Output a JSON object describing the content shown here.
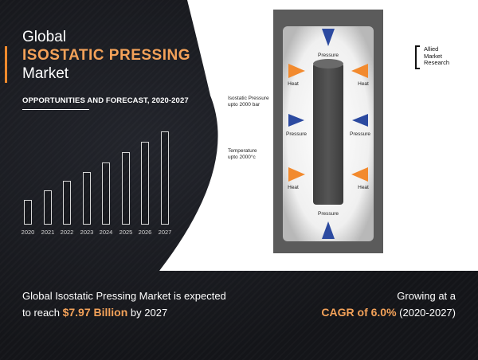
{
  "title": {
    "line1": "Global",
    "line2": "ISOSTATIC PRESSING",
    "line3": "Market"
  },
  "subtitle": "OPPORTUNITIES AND FORECAST, 2020-2027",
  "bar_chart": {
    "years": [
      "2020",
      "2021",
      "2022",
      "2023",
      "2024",
      "2025",
      "2026",
      "2027"
    ],
    "relative_heights": [
      0.24,
      0.33,
      0.42,
      0.51,
      0.6,
      0.7,
      0.8,
      0.9
    ]
  },
  "diagram": {
    "pressure_label": "Pressure",
    "heat_label": "Heat",
    "isostatic_pressure": "Isostatic Pressure\nupto 2000 bar",
    "temperature": "Temperature\nupto 2000°c",
    "colors": {
      "pressure": "#2c4aa0",
      "heat": "#f28a2e",
      "vessel": "#5a5a5a",
      "core": "#4a4a4a"
    }
  },
  "logo": {
    "line1": "Allied",
    "line2": "Market",
    "line3": "Research"
  },
  "bottom_left": {
    "line1": "Global Isostatic Pressing Market is expected",
    "prefix": "to reach ",
    "value": "$7.97 Billion",
    "suffix": " by 2027"
  },
  "bottom_right": {
    "line1": "Growing at a",
    "value": "CAGR of 6.0%",
    "suffix": " (2020-2027)"
  }
}
